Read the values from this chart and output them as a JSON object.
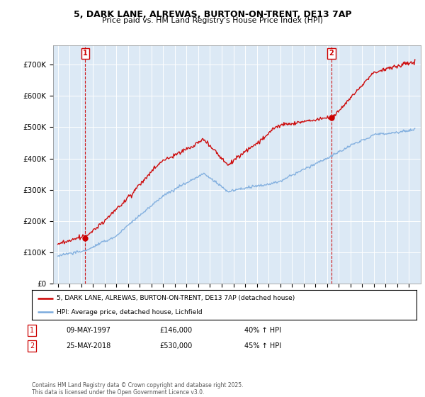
{
  "title_line1": "5, DARK LANE, ALREWAS, BURTON-ON-TRENT, DE13 7AP",
  "title_line2": "Price paid vs. HM Land Registry's House Price Index (HPI)",
  "ylim": [
    0,
    760000
  ],
  "yticks": [
    0,
    100000,
    200000,
    300000,
    400000,
    500000,
    600000,
    700000
  ],
  "ytick_labels": [
    "£0",
    "£100K",
    "£200K",
    "£300K",
    "£400K",
    "£500K",
    "£600K",
    "£700K"
  ],
  "red_line_color": "#cc0000",
  "blue_line_color": "#7aaadd",
  "marker1_year": 1997.35,
  "marker1_value": 146000,
  "marker2_year": 2018.38,
  "marker2_value": 530000,
  "legend_entry1": "5, DARK LANE, ALREWAS, BURTON-ON-TRENT, DE13 7AP (detached house)",
  "legend_entry2": "HPI: Average price, detached house, Lichfield",
  "table_row1": [
    "1",
    "09-MAY-1997",
    "£146,000",
    "40% ↑ HPI"
  ],
  "table_row2": [
    "2",
    "25-MAY-2018",
    "£530,000",
    "45% ↑ HPI"
  ],
  "footer": "Contains HM Land Registry data © Crown copyright and database right 2025.\nThis data is licensed under the Open Government Licence v3.0.",
  "background_color": "#ffffff",
  "plot_bg_color": "#dce9f5",
  "grid_color": "#ffffff"
}
